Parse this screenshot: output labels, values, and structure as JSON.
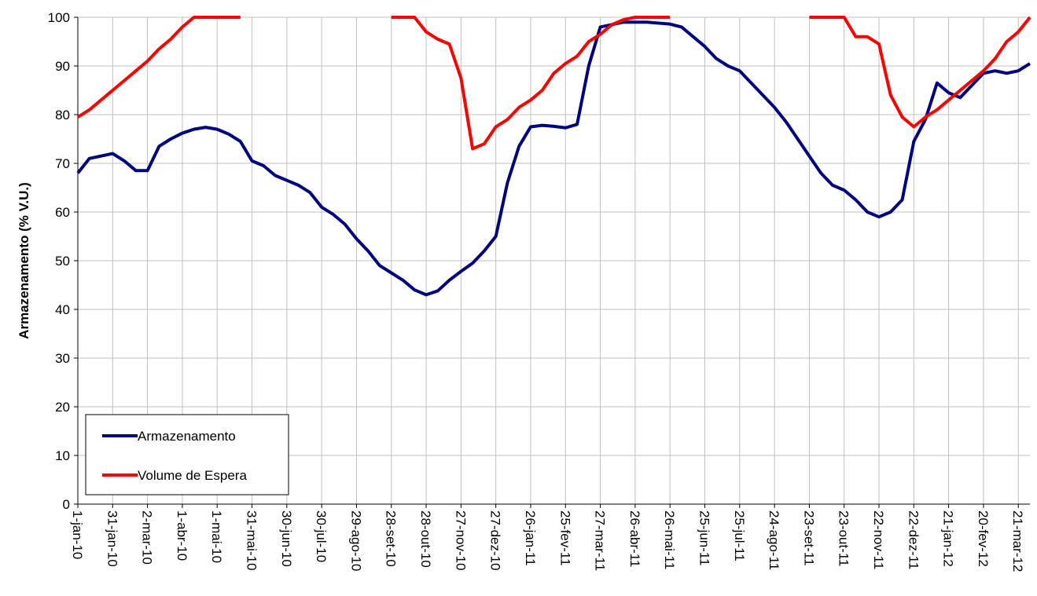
{
  "chart_data": {
    "type": "line",
    "y_label": "Armazenamento (% V.U.)",
    "x": [
      0,
      10,
      20,
      30,
      40,
      50,
      60,
      70,
      80,
      90,
      100,
      110,
      120,
      130,
      140,
      150,
      160,
      170,
      180,
      190,
      200,
      210,
      220,
      230,
      240,
      250,
      260,
      270,
      280,
      290,
      300,
      310,
      320,
      330,
      340,
      350,
      360,
      370,
      380,
      390,
      400,
      410,
      420,
      430,
      440,
      450,
      460,
      470,
      480,
      490,
      500,
      510,
      520,
      530,
      540,
      550,
      560,
      570,
      580,
      590,
      600,
      610,
      620,
      630,
      640,
      650,
      660,
      670,
      680,
      690,
      700,
      710,
      720,
      730,
      740,
      750,
      760,
      770,
      780,
      790,
      800,
      810,
      820
    ],
    "series": [
      {
        "name": "Armazenamento",
        "color": "#000080",
        "values": [
          68,
          71,
          71.5,
          72,
          70.5,
          68.5,
          68.5,
          73.5,
          75,
          76.2,
          77,
          77.4,
          77,
          76,
          74.5,
          70.5,
          69.5,
          67.5,
          66.5,
          65.5,
          64,
          61,
          59.5,
          57.5,
          54.5,
          52,
          49,
          47.5,
          46,
          44,
          43,
          43.8,
          46,
          47.8,
          49.5,
          52,
          55,
          66,
          73.5,
          77.5,
          77.8,
          77.6,
          77.3,
          78,
          90,
          98,
          98.5,
          99,
          99,
          99,
          98.8,
          98.6,
          98,
          96,
          94,
          91.5,
          90,
          89,
          86.5,
          84,
          81.5,
          78.5,
          75,
          71.5,
          68,
          65.5,
          64.5,
          62.5,
          60,
          59,
          60,
          62.5,
          74.5,
          79,
          86.5,
          84.5,
          83.5,
          86,
          88.5,
          89,
          88.5,
          89,
          90.5
        ]
      },
      {
        "name": "Volume de Espera",
        "color": "#ff0000",
        "values": [
          79.5,
          81,
          83,
          85,
          87,
          89,
          91,
          93.5,
          95.5,
          98,
          100,
          100,
          100,
          100,
          100,
          null,
          null,
          null,
          null,
          null,
          null,
          null,
          null,
          null,
          null,
          null,
          null,
          100,
          100,
          100,
          97,
          95.5,
          94.5,
          87.5,
          73,
          74,
          77.5,
          79,
          81.5,
          83,
          85,
          88.5,
          90.5,
          92,
          95,
          96.5,
          98.5,
          99.5,
          100,
          100,
          100,
          100,
          null,
          null,
          null,
          null,
          null,
          null,
          null,
          null,
          null,
          null,
          null,
          100,
          100,
          100,
          100,
          96,
          96,
          94.5,
          84,
          79.5,
          77.5,
          79.5,
          81,
          83,
          85,
          87,
          89,
          91.5,
          95,
          97,
          100
        ]
      }
    ],
    "xlim": [
      0,
      820
    ],
    "xticks": [
      {
        "value": 0,
        "label": "1-jan-10"
      },
      {
        "value": 30,
        "label": "31-jan-10"
      },
      {
        "value": 60,
        "label": "2-mar-10"
      },
      {
        "value": 90,
        "label": "1-abr-10"
      },
      {
        "value": 120,
        "label": "1-mai-10"
      },
      {
        "value": 150,
        "label": "31-mai-10"
      },
      {
        "value": 180,
        "label": "30-jun-10"
      },
      {
        "value": 210,
        "label": "30-jul-10"
      },
      {
        "value": 240,
        "label": "29-ago-10"
      },
      {
        "value": 270,
        "label": "28-set-10"
      },
      {
        "value": 300,
        "label": "28-out-10"
      },
      {
        "value": 330,
        "label": "27-nov-10"
      },
      {
        "value": 360,
        "label": "27-dez-10"
      },
      {
        "value": 390,
        "label": "26-jan-11"
      },
      {
        "value": 420,
        "label": "25-fev-11"
      },
      {
        "value": 450,
        "label": "27-mar-11"
      },
      {
        "value": 480,
        "label": "26-abr-11"
      },
      {
        "value": 510,
        "label": "26-mai-11"
      },
      {
        "value": 540,
        "label": "25-jun-11"
      },
      {
        "value": 570,
        "label": "25-jul-11"
      },
      {
        "value": 600,
        "label": "24-ago-11"
      },
      {
        "value": 630,
        "label": "23-set-11"
      },
      {
        "value": 660,
        "label": "23-out-11"
      },
      {
        "value": 690,
        "label": "22-nov-11"
      },
      {
        "value": 720,
        "label": "22-dez-11"
      },
      {
        "value": 750,
        "label": "21-jan-12"
      },
      {
        "value": 780,
        "label": "20-fev-12"
      },
      {
        "value": 810,
        "label": "21-mar-12"
      }
    ],
    "ylim": [
      0,
      100
    ],
    "yticks": [
      0,
      10,
      20,
      30,
      40,
      50,
      60,
      70,
      80,
      90,
      100
    ],
    "grid": true,
    "legend": "lower-left"
  }
}
